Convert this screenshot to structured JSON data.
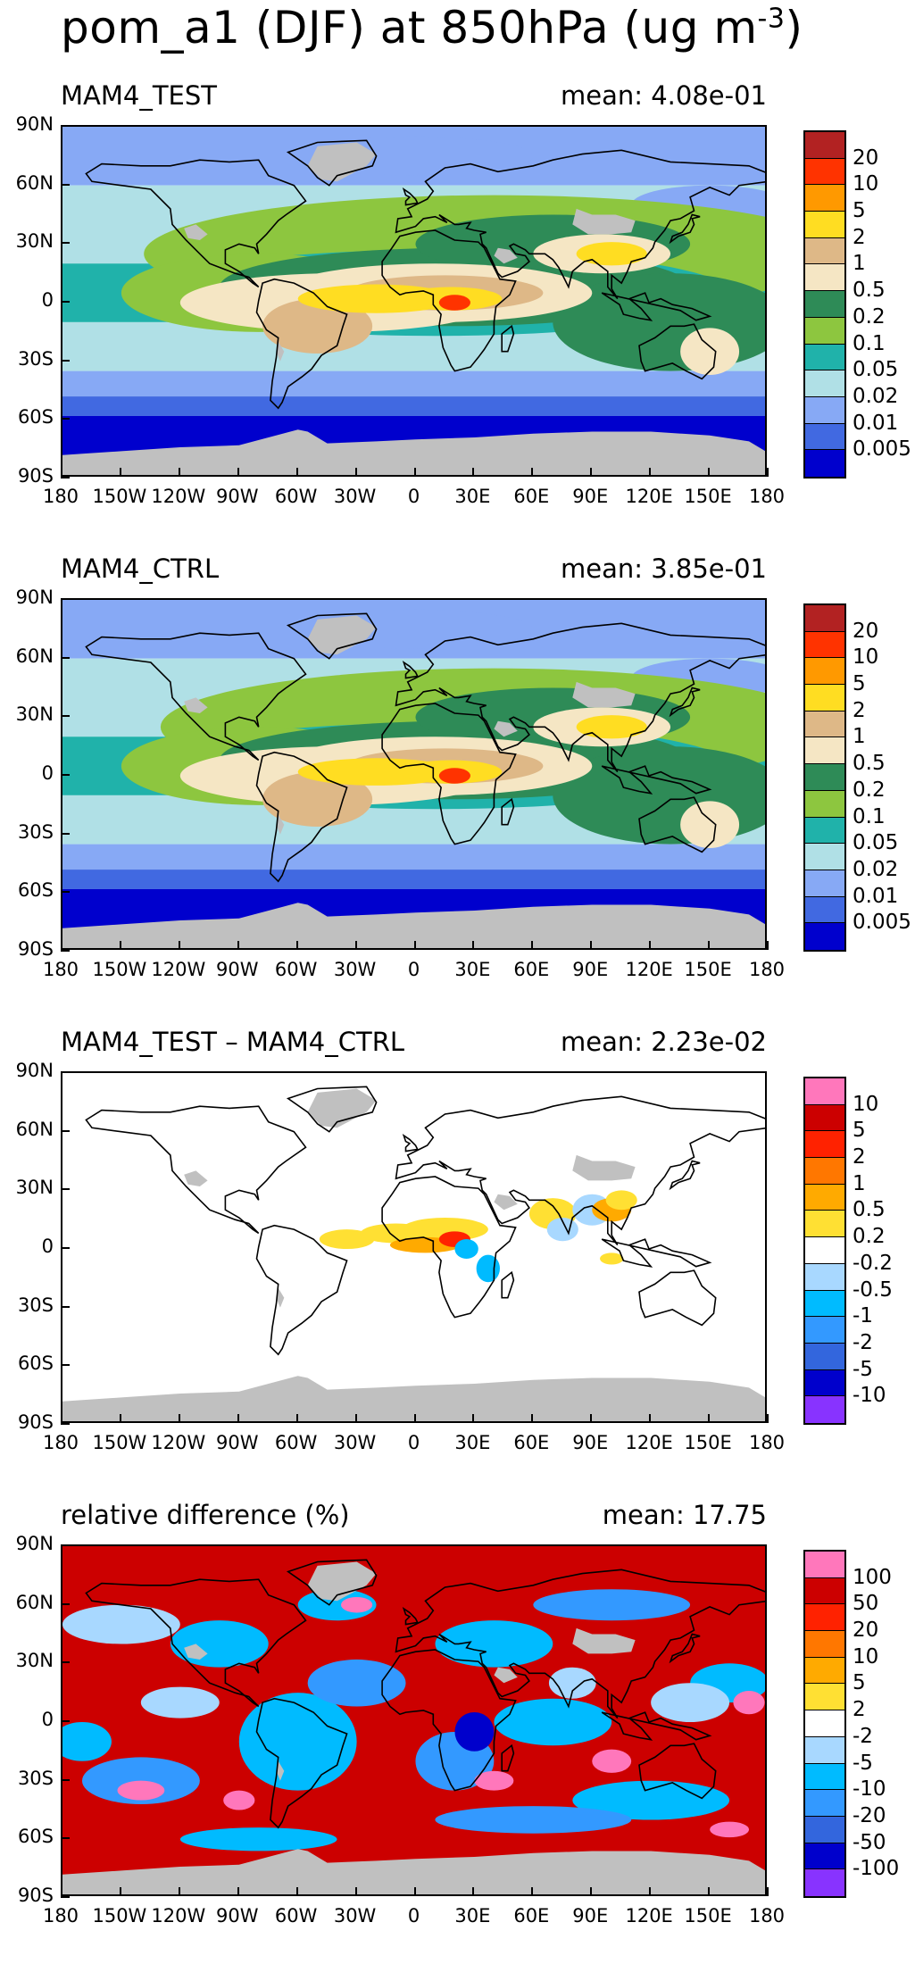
{
  "title": {
    "main": "pom_a1 (DJF) at 850hPa (ug m",
    "sup": "-3",
    "tail": ")"
  },
  "lat_labels": [
    "90N",
    "60N",
    "30N",
    "0",
    "30S",
    "60S",
    "90S"
  ],
  "lon_labels": [
    "180",
    "150W",
    "120W",
    "90W",
    "60W",
    "30W",
    "0",
    "30E",
    "60E",
    "90E",
    "120E",
    "150E",
    "180"
  ],
  "colorbars": {
    "abs": {
      "colors": [
        "#b22222",
        "#ff3300",
        "#ff9900",
        "#ffdd22",
        "#deb887",
        "#f5e6c4",
        "#2e8b57",
        "#8dc63f",
        "#20b2aa",
        "#b0e0e6",
        "#87a9f5",
        "#4169e1",
        "#0000cd"
      ],
      "labels": [
        "20",
        "10",
        "5",
        "2",
        "1",
        "0.5",
        "0.2",
        "0.1",
        "0.05",
        "0.02",
        "0.01",
        "0.005"
      ]
    },
    "diff": {
      "colors": [
        "#ff77bb",
        "#cc0000",
        "#ff2200",
        "#ff7700",
        "#ffaa00",
        "#ffe033",
        "#ffffff",
        "#a8d8ff",
        "#00bbff",
        "#3399ff",
        "#3366dd",
        "#0000cc",
        "#8833ff"
      ],
      "labels": [
        "10",
        "5",
        "2",
        "1",
        "0.5",
        "0.2",
        "-0.2",
        "-0.5",
        "-1",
        "-2",
        "-5",
        "-10"
      ]
    },
    "rel": {
      "colors": [
        "#ff77bb",
        "#cc0000",
        "#ff2200",
        "#ff7700",
        "#ffaa00",
        "#ffe033",
        "#ffffff",
        "#a8d8ff",
        "#00bbff",
        "#3399ff",
        "#3366dd",
        "#0000cc",
        "#8833ff"
      ],
      "labels": [
        "100",
        "50",
        "20",
        "10",
        "5",
        "2",
        "-2",
        "-5",
        "-10",
        "-20",
        "-50",
        "-100"
      ]
    }
  },
  "panels": [
    {
      "label": "MAM4_TEST",
      "mean": "mean: 4.08e-01",
      "kind": "abs"
    },
    {
      "label": "MAM4_CTRL",
      "mean": "mean: 3.85e-01",
      "kind": "abs"
    },
    {
      "label": "MAM4_TEST – MAM4_CTRL",
      "mean": "mean: 2.23e-02",
      "kind": "diff"
    },
    {
      "label": "relative difference (%)",
      "mean": "mean: 17.75",
      "kind": "rel"
    }
  ]
}
